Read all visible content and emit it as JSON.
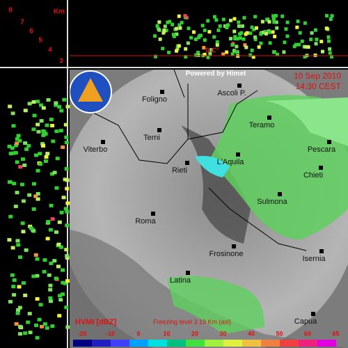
{
  "header": {
    "powered": "Powered by Himet",
    "date": "10 Sep 2010",
    "time": "14:30 CEST",
    "logo": "PROTEZIONE CIVILE"
  },
  "profile": {
    "unit": "Km",
    "levels": [
      "8",
      "7",
      "6",
      "5",
      "4",
      "3"
    ],
    "freezing_mark": "0 C°"
  },
  "cities": [
    "Foligno",
    "Ascoli P.",
    "Teramo",
    "Terni",
    "Viterbo",
    "Pescara",
    "L'Aquila",
    "Rieti",
    "Chieti",
    "Sulmona",
    "Roma",
    "Frosinone",
    "Isernia",
    "Latina",
    "Capua"
  ],
  "legend": {
    "title": "HVMI [dBZ]",
    "freezing": "Freezing level  3.19 Km (asl)",
    "labels": [
      "-20",
      "-10",
      "0",
      "10",
      "20",
      "30",
      "40",
      "50",
      "60",
      "65"
    ]
  }
}
